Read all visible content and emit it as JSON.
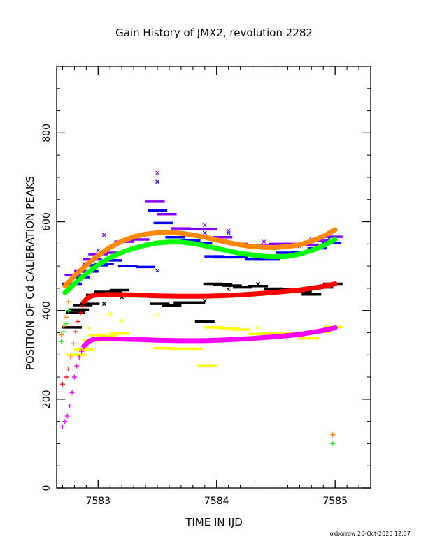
{
  "chart_data": {
    "type": "scatter",
    "title": "Gain History of JMX2, revolution 2282",
    "xlabel": "TIME IN IJD",
    "ylabel": "POSITION OF Cd CALIBRATION PEAKS",
    "footer": "oxborrow 26-Oct-2020 12:37",
    "xlim": [
      7582.65,
      7585.3
    ],
    "ylim": [
      0,
      950
    ],
    "x_ticks": [
      7583,
      7584,
      7585
    ],
    "y_ticks": [
      0,
      200,
      400,
      600,
      800
    ],
    "x_tick_labels": [
      "7583",
      "7584",
      "7585"
    ],
    "y_tick_labels": [
      "0",
      "200",
      "400",
      "600",
      "800"
    ],
    "grid": false,
    "legend": "none",
    "series": [
      {
        "color": "#000000",
        "marker": "dash",
        "points": [
          [
            7582.78,
            362
          ],
          [
            7582.81,
            395
          ],
          [
            7582.84,
            402
          ],
          [
            7582.87,
            412
          ],
          [
            7582.93,
            415
          ],
          [
            7582.98,
            435
          ],
          [
            7583.05,
            442
          ],
          [
            7583.12,
            441
          ],
          [
            7583.18,
            446
          ],
          [
            7583.28,
            432
          ],
          [
            7583.4,
            435
          ],
          [
            7583.52,
            415
          ],
          [
            7583.62,
            411
          ],
          [
            7583.72,
            418
          ],
          [
            7583.82,
            418
          ],
          [
            7583.9,
            375
          ],
          [
            7583.97,
            460
          ],
          [
            7584.05,
            458
          ],
          [
            7584.13,
            456
          ],
          [
            7584.22,
            452
          ],
          [
            7584.35,
            455
          ],
          [
            7584.48,
            449
          ],
          [
            7584.6,
            447
          ],
          [
            7584.72,
            443
          ],
          [
            7584.8,
            436
          ],
          [
            7584.9,
            452
          ],
          [
            7584.98,
            460
          ]
        ]
      },
      {
        "color": "#ffff00",
        "marker": "dash",
        "points": [
          [
            7582.82,
            300
          ],
          [
            7582.88,
            312
          ],
          [
            7582.95,
            332
          ],
          [
            7583.0,
            345
          ],
          [
            7583.08,
            342
          ],
          [
            7583.18,
            348
          ],
          [
            7583.32,
            335
          ],
          [
            7583.45,
            334
          ],
          [
            7583.55,
            315
          ],
          [
            7583.68,
            314
          ],
          [
            7583.8,
            314
          ],
          [
            7583.92,
            275
          ],
          [
            7583.98,
            362
          ],
          [
            7584.1,
            360
          ],
          [
            7584.2,
            357
          ],
          [
            7584.35,
            347
          ],
          [
            7584.45,
            348
          ],
          [
            7584.55,
            348
          ],
          [
            7584.68,
            346
          ],
          [
            7584.78,
            337
          ],
          [
            7584.88,
            352
          ],
          [
            7584.98,
            363
          ]
        ]
      },
      {
        "color": "#0000ff",
        "marker": "dash",
        "points": [
          [
            7582.78,
            460
          ],
          [
            7582.85,
            475
          ],
          [
            7582.92,
            488
          ],
          [
            7583.0,
            502
          ],
          [
            7583.05,
            505
          ],
          [
            7583.12,
            513
          ],
          [
            7583.25,
            500
          ],
          [
            7583.4,
            498
          ],
          [
            7583.5,
            625
          ],
          [
            7583.55,
            597
          ],
          [
            7583.65,
            565
          ],
          [
            7583.78,
            558
          ],
          [
            7583.88,
            552
          ],
          [
            7583.98,
            522
          ],
          [
            7584.05,
            520
          ],
          [
            7584.18,
            520
          ],
          [
            7584.32,
            515
          ],
          [
            7584.45,
            515
          ],
          [
            7584.58,
            530
          ],
          [
            7584.72,
            532
          ],
          [
            7584.85,
            540
          ],
          [
            7584.97,
            552
          ]
        ]
      },
      {
        "color": "#8800ff",
        "marker": "dash",
        "points": [
          [
            7582.8,
            480
          ],
          [
            7582.88,
            490
          ],
          [
            7582.95,
            515
          ],
          [
            7583.0,
            527
          ],
          [
            7583.1,
            530
          ],
          [
            7583.22,
            555
          ],
          [
            7583.35,
            560
          ],
          [
            7583.48,
            645
          ],
          [
            7583.58,
            617
          ],
          [
            7583.7,
            585
          ],
          [
            7583.8,
            584
          ],
          [
            7583.92,
            583
          ],
          [
            7584.05,
            565
          ],
          [
            7584.18,
            550
          ],
          [
            7584.28,
            545
          ],
          [
            7584.42,
            546
          ],
          [
            7584.52,
            550
          ],
          [
            7584.65,
            550
          ],
          [
            7584.78,
            548
          ],
          [
            7584.9,
            557
          ],
          [
            7584.98,
            566
          ]
        ]
      },
      {
        "color": "#ff0000",
        "marker": "plus",
        "points": [
          [
            7582.7,
            234
          ],
          [
            7582.73,
            250
          ],
          [
            7582.75,
            268
          ],
          [
            7582.77,
            295
          ],
          [
            7582.79,
            325
          ],
          [
            7582.81,
            352
          ],
          [
            7582.83,
            375
          ],
          [
            7582.85,
            395
          ],
          [
            7582.87,
            410
          ],
          [
            7582.89,
            422
          ]
        ]
      },
      {
        "color": "#ff00ff",
        "marker": "plus",
        "points": [
          [
            7582.7,
            138
          ],
          [
            7582.72,
            150
          ],
          [
            7582.74,
            162
          ],
          [
            7582.76,
            185
          ],
          [
            7582.78,
            215
          ],
          [
            7582.8,
            250
          ],
          [
            7582.82,
            275
          ],
          [
            7582.84,
            295
          ],
          [
            7582.86,
            308
          ],
          [
            7582.88,
            318
          ]
        ]
      },
      {
        "color": "#ff8800",
        "marker": "plus",
        "points": [
          [
            7582.69,
            345
          ],
          [
            7582.71,
            365
          ],
          [
            7582.73,
            385
          ],
          [
            7582.75,
            420
          ],
          [
            7584.98,
            120
          ]
        ]
      },
      {
        "color": "#00ff00",
        "marker": "plus",
        "points": [
          [
            7582.69,
            330
          ],
          [
            7582.71,
            352
          ],
          [
            7582.73,
            370
          ],
          [
            7582.75,
            400
          ],
          [
            7584.98,
            100
          ]
        ]
      },
      {
        "color": "#0000ff",
        "marker": "cross",
        "points": [
          [
            7582.85,
            490
          ],
          [
            7583.0,
            535
          ],
          [
            7583.2,
            530
          ],
          [
            7583.5,
            690
          ],
          [
            7583.5,
            490
          ],
          [
            7583.9,
            575
          ],
          [
            7584.1,
            575
          ],
          [
            7584.35,
            520
          ],
          [
            7584.7,
            545
          ],
          [
            7584.95,
            563
          ]
        ]
      },
      {
        "color": "#8800ff",
        "marker": "cross",
        "points": [
          [
            7582.88,
            505
          ],
          [
            7583.05,
            570
          ],
          [
            7583.25,
            560
          ],
          [
            7583.5,
            710
          ],
          [
            7583.9,
            592
          ],
          [
            7584.1,
            580
          ],
          [
            7584.4,
            555
          ],
          [
            7584.8,
            560
          ]
        ]
      },
      {
        "color": "#000000",
        "marker": "cross",
        "points": [
          [
            7582.85,
            400
          ],
          [
            7583.05,
            415
          ],
          [
            7583.2,
            430
          ],
          [
            7583.9,
            422
          ],
          [
            7584.1,
            448
          ],
          [
            7584.35,
            460
          ],
          [
            7584.75,
            440
          ]
        ]
      },
      {
        "color": "#ffff00",
        "marker": "cross",
        "points": [
          [
            7582.92,
            360
          ],
          [
            7583.1,
            392
          ],
          [
            7583.2,
            377
          ],
          [
            7583.5,
            390
          ],
          [
            7584.35,
            362
          ]
        ]
      },
      {
        "color": "#ff8800",
        "marker": "fit",
        "points": [
          [
            7582.72,
            455
          ],
          [
            7582.8,
            478
          ],
          [
            7582.9,
            502
          ],
          [
            7583.0,
            524
          ],
          [
            7583.1,
            542
          ],
          [
            7583.2,
            556
          ],
          [
            7583.3,
            566
          ],
          [
            7583.4,
            572
          ],
          [
            7583.5,
            575
          ],
          [
            7583.6,
            576
          ],
          [
            7583.7,
            574
          ],
          [
            7583.8,
            570
          ],
          [
            7583.9,
            565
          ],
          [
            7584.0,
            559
          ],
          [
            7584.1,
            553
          ],
          [
            7584.2,
            548
          ],
          [
            7584.3,
            544
          ],
          [
            7584.4,
            542
          ],
          [
            7584.5,
            542
          ],
          [
            7584.6,
            544
          ],
          [
            7584.7,
            548
          ],
          [
            7584.8,
            556
          ],
          [
            7584.9,
            567
          ],
          [
            7585.0,
            582
          ]
        ]
      },
      {
        "color": "#00ff00",
        "marker": "fit",
        "points": [
          [
            7582.72,
            440
          ],
          [
            7582.8,
            460
          ],
          [
            7582.9,
            483
          ],
          [
            7583.0,
            503
          ],
          [
            7583.1,
            519
          ],
          [
            7583.2,
            531
          ],
          [
            7583.3,
            540
          ],
          [
            7583.4,
            547
          ],
          [
            7583.5,
            552
          ],
          [
            7583.6,
            554
          ],
          [
            7583.7,
            554
          ],
          [
            7583.8,
            551
          ],
          [
            7583.9,
            546
          ],
          [
            7584.0,
            540
          ],
          [
            7584.1,
            534
          ],
          [
            7584.2,
            529
          ],
          [
            7584.3,
            525
          ],
          [
            7584.4,
            522
          ],
          [
            7584.5,
            521
          ],
          [
            7584.6,
            522
          ],
          [
            7584.7,
            527
          ],
          [
            7584.8,
            535
          ],
          [
            7584.9,
            546
          ],
          [
            7585.0,
            560
          ]
        ]
      },
      {
        "color": "#ff0000",
        "marker": "fit",
        "points": [
          [
            7582.88,
            420
          ],
          [
            7582.92,
            430
          ],
          [
            7582.96,
            434
          ],
          [
            7583.0,
            435
          ],
          [
            7583.1,
            436
          ],
          [
            7583.3,
            435
          ],
          [
            7583.5,
            433
          ],
          [
            7583.7,
            432
          ],
          [
            7583.9,
            432
          ],
          [
            7584.1,
            434
          ],
          [
            7584.3,
            437
          ],
          [
            7584.5,
            441
          ],
          [
            7584.7,
            446
          ],
          [
            7584.9,
            454
          ],
          [
            7585.0,
            460
          ]
        ]
      },
      {
        "color": "#ff00ff",
        "marker": "fit",
        "points": [
          [
            7582.88,
            320
          ],
          [
            7582.92,
            330
          ],
          [
            7582.96,
            335
          ],
          [
            7583.0,
            336
          ],
          [
            7583.1,
            336
          ],
          [
            7583.3,
            335
          ],
          [
            7583.5,
            333
          ],
          [
            7583.7,
            332
          ],
          [
            7583.9,
            332
          ],
          [
            7584.1,
            334
          ],
          [
            7584.3,
            337
          ],
          [
            7584.5,
            341
          ],
          [
            7584.7,
            346
          ],
          [
            7584.9,
            355
          ],
          [
            7585.0,
            361
          ]
        ]
      }
    ]
  }
}
